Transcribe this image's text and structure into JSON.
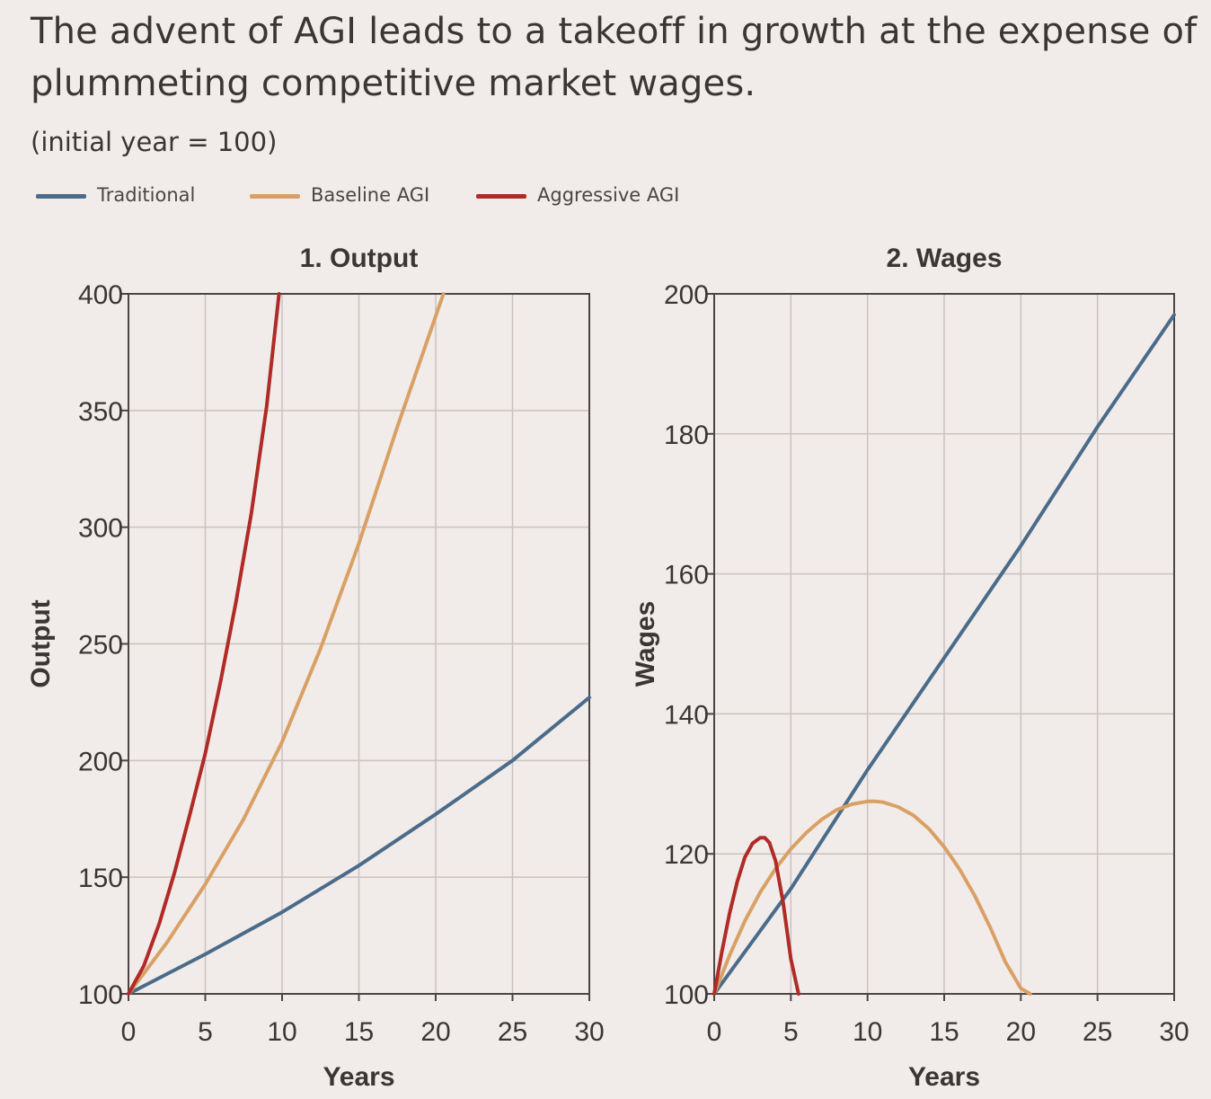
{
  "title": "The advent of AGI leads to a takeoff in growth at the expense of plummeting competitive market wages.",
  "subtitle": "(initial year = 100)",
  "legend": [
    {
      "label": "Traditional",
      "color": "#4a6b8a"
    },
    {
      "label": "Baseline AGI",
      "color": "#d9a066"
    },
    {
      "label": "Aggressive AGI",
      "color": "#b02a26"
    }
  ],
  "chart_data": [
    {
      "type": "line",
      "title": "1. Output",
      "xlabel": "Years",
      "ylabel": "Output",
      "xlim": [
        0,
        30
      ],
      "ylim": [
        100,
        400
      ],
      "xticks": [
        "0",
        "5",
        "10",
        "15",
        "20",
        "25",
        "30"
      ],
      "yticks": [
        "100",
        "150",
        "200",
        "250",
        "300",
        "350",
        "400"
      ],
      "grid": true,
      "series": [
        {
          "name": "Traditional",
          "color": "#4a6b8a",
          "x": [
            0,
            5,
            10,
            15,
            20,
            25,
            30
          ],
          "y": [
            100,
            117,
            135,
            155,
            177,
            200,
            227
          ]
        },
        {
          "name": "Baseline AGI",
          "color": "#d9a066",
          "x": [
            0,
            2.5,
            5,
            7.5,
            10,
            12.5,
            15,
            17.5,
            20.5
          ],
          "y": [
            100,
            122,
            147,
            175,
            208,
            248,
            293,
            343,
            400
          ]
        },
        {
          "name": "Aggressive AGI",
          "color": "#b02a26",
          "x": [
            0,
            1,
            2,
            3,
            4,
            5,
            6,
            7,
            8,
            9,
            9.8
          ],
          "y": [
            100,
            112,
            130,
            152,
            177,
            203,
            234,
            268,
            306,
            352,
            400
          ]
        }
      ]
    },
    {
      "type": "line",
      "title": "2. Wages",
      "xlabel": "Years",
      "ylabel": "Wages",
      "xlim": [
        0,
        30
      ],
      "ylim": [
        100,
        200
      ],
      "xticks": [
        "0",
        "5",
        "10",
        "15",
        "20",
        "25",
        "30"
      ],
      "yticks": [
        "100",
        "120",
        "140",
        "160",
        "180",
        "200"
      ],
      "grid": true,
      "series": [
        {
          "name": "Traditional",
          "color": "#4a6b8a",
          "x": [
            0,
            5,
            10,
            15,
            20,
            25,
            30
          ],
          "y": [
            100,
            115,
            132,
            148,
            164,
            181,
            197
          ]
        },
        {
          "name": "Baseline AGI",
          "color": "#d9a066",
          "x": [
            0,
            1,
            2,
            3,
            4,
            5,
            6,
            7,
            8,
            9,
            10,
            10.5,
            11,
            12,
            13,
            14,
            15,
            16,
            17,
            18,
            19,
            20,
            20.6
          ],
          "y": [
            100,
            105.5,
            110.4,
            114.5,
            117.9,
            120.7,
            123,
            124.9,
            126.3,
            127.1,
            127.5,
            127.5,
            127.4,
            126.7,
            125.5,
            123.6,
            121,
            117.8,
            114,
            109.5,
            104.5,
            100.8,
            100
          ]
        },
        {
          "name": "Aggressive AGI",
          "color": "#b02a26",
          "x": [
            0,
            0.5,
            1,
            1.5,
            2,
            2.5,
            3,
            3.3,
            3.6,
            4,
            4.5,
            5,
            5.5
          ],
          "y": [
            100,
            106,
            111.5,
            116,
            119.5,
            121.5,
            122.3,
            122.3,
            121.6,
            119,
            113,
            105,
            100
          ]
        }
      ]
    }
  ]
}
